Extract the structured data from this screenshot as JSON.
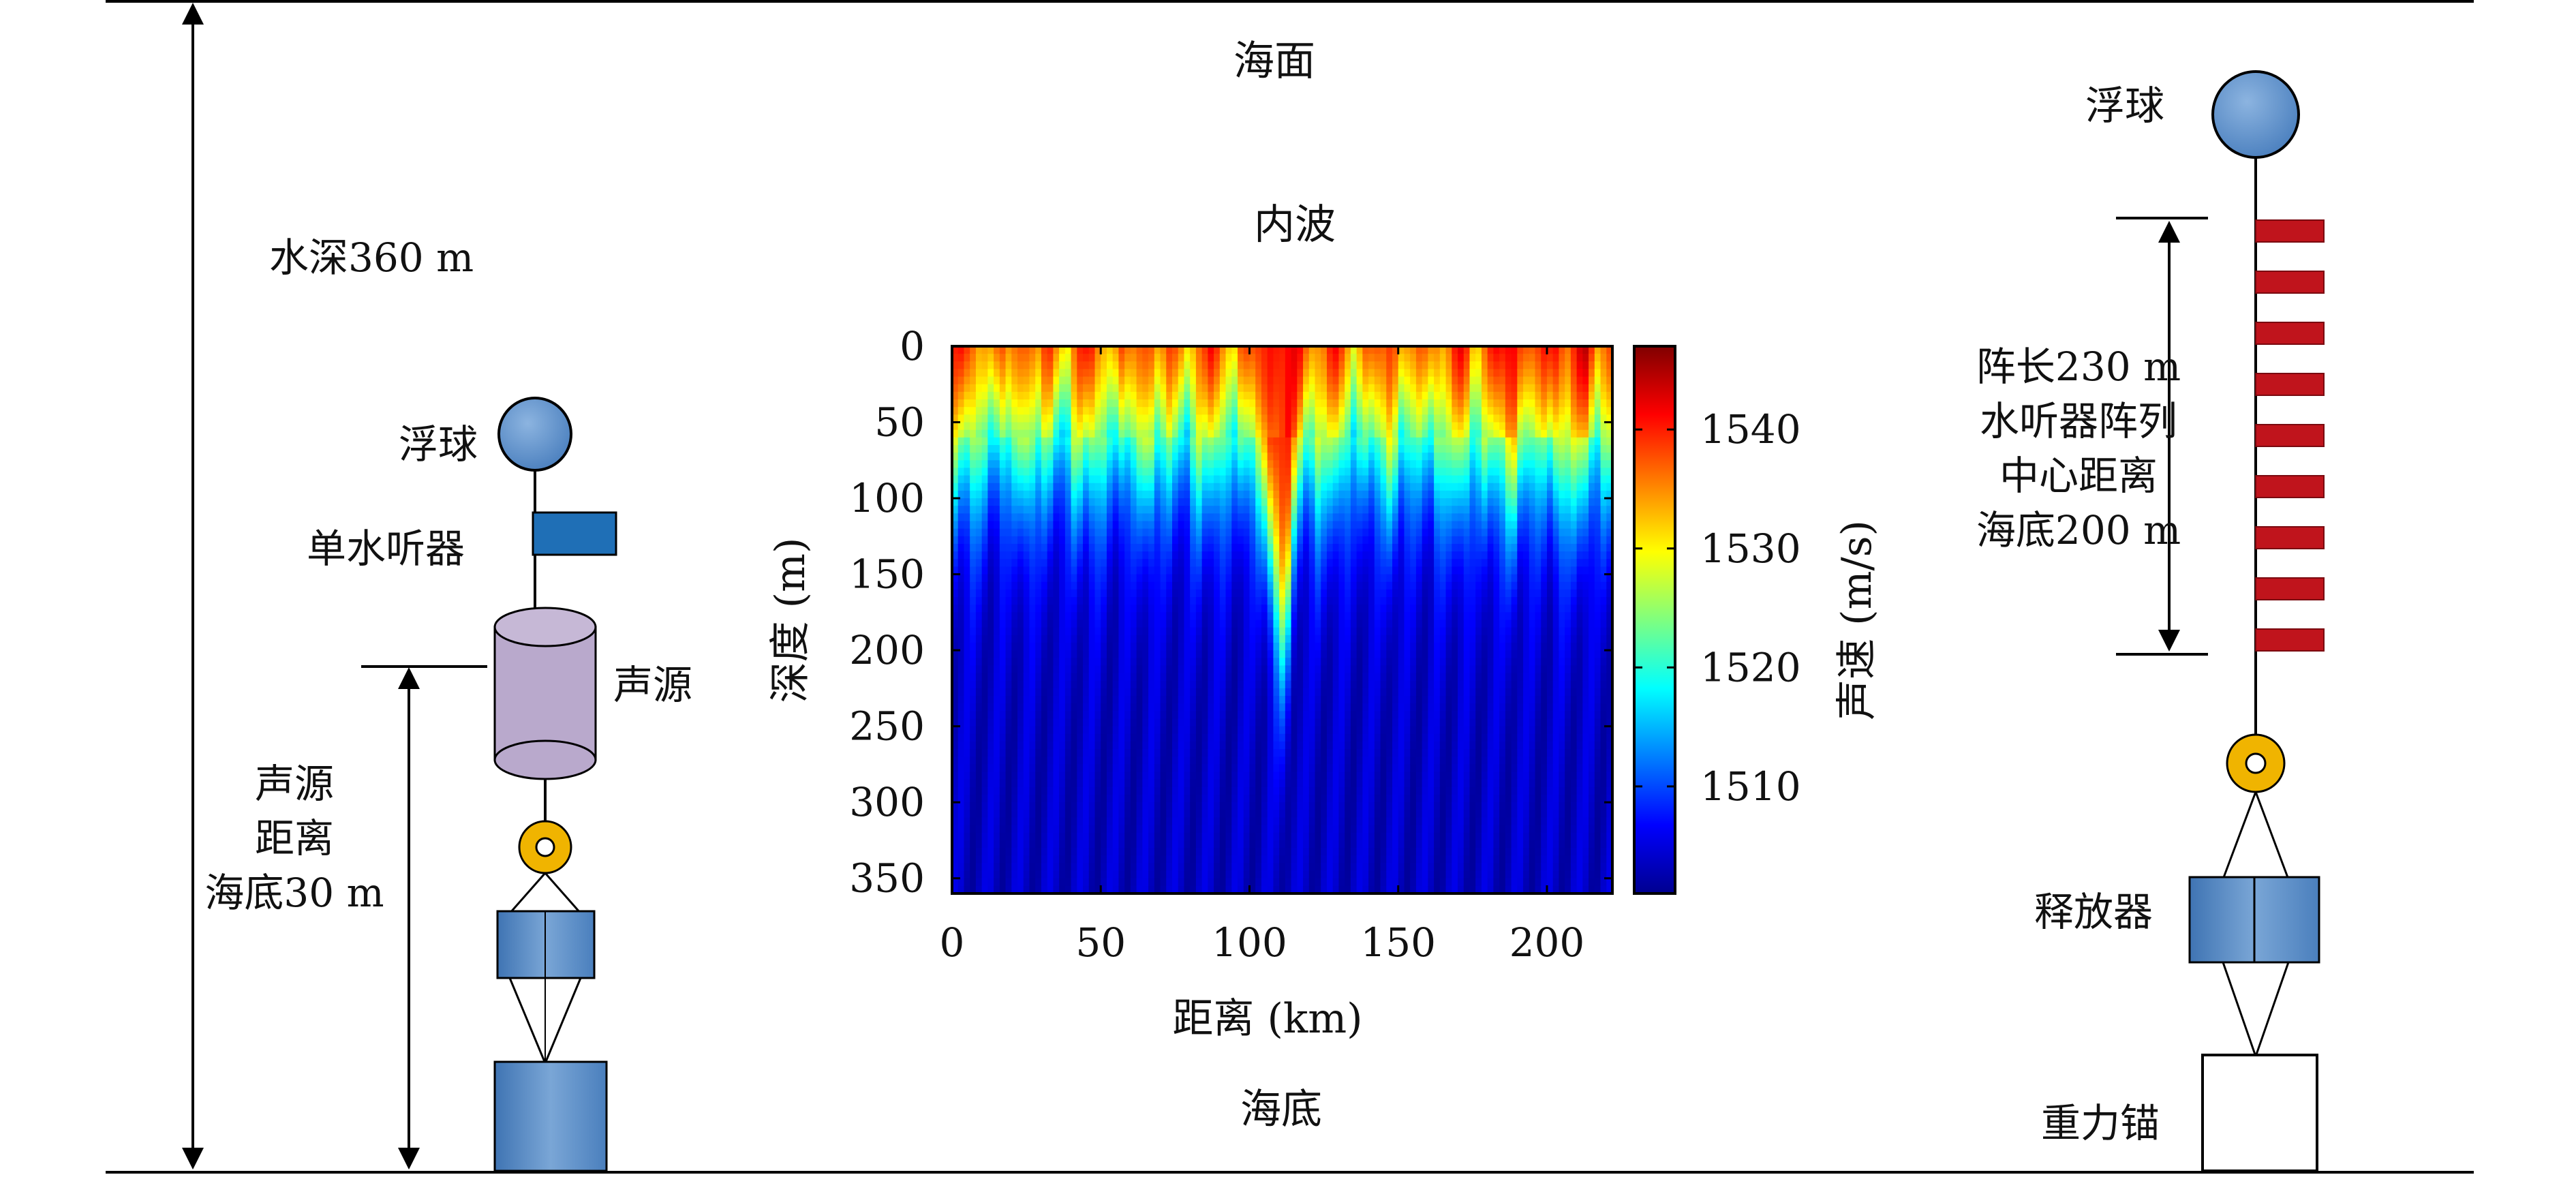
{
  "labels": {
    "sea_surface": "海面",
    "internal_wave": "内波",
    "seabed": "海底",
    "water_depth": "水深360 m",
    "left_float": "浮球",
    "single_hydrophone": "单水听器",
    "source": "声源",
    "source_height": [
      "声源",
      "距离",
      "海底30 m"
    ],
    "right_float": "浮球",
    "array_info": [
      "阵长230 m",
      "水听器阵列",
      "中心距离",
      "海底200 m"
    ],
    "releaser": "释放器",
    "anchor": "重力锚"
  },
  "chart_data": {
    "type": "heatmap",
    "xlabel": "距离 (km)",
    "ylabel": "深度 (m)",
    "colorbar_label": "声速 (m/s)",
    "xlim": [
      0,
      222
    ],
    "ylim": [
      0,
      360
    ],
    "xticks": [
      0,
      50,
      100,
      150,
      200
    ],
    "yticks": [
      0,
      50,
      100,
      150,
      200,
      250,
      300,
      350
    ],
    "clim": [
      1501,
      1547
    ],
    "cticks": [
      1510,
      1520,
      1530,
      1540
    ],
    "colormap": "jet",
    "profile_note_values": {
      "surface_speed": 1542,
      "bottom_speed": 1504
    }
  },
  "colors": {
    "float": "#5b8ec9",
    "hydrophone": "#1f6fb6",
    "source_body": "#b9a9cc",
    "release_ring": "#f0b400",
    "box": "#5e8fc5",
    "array_element": "#c0141c"
  }
}
